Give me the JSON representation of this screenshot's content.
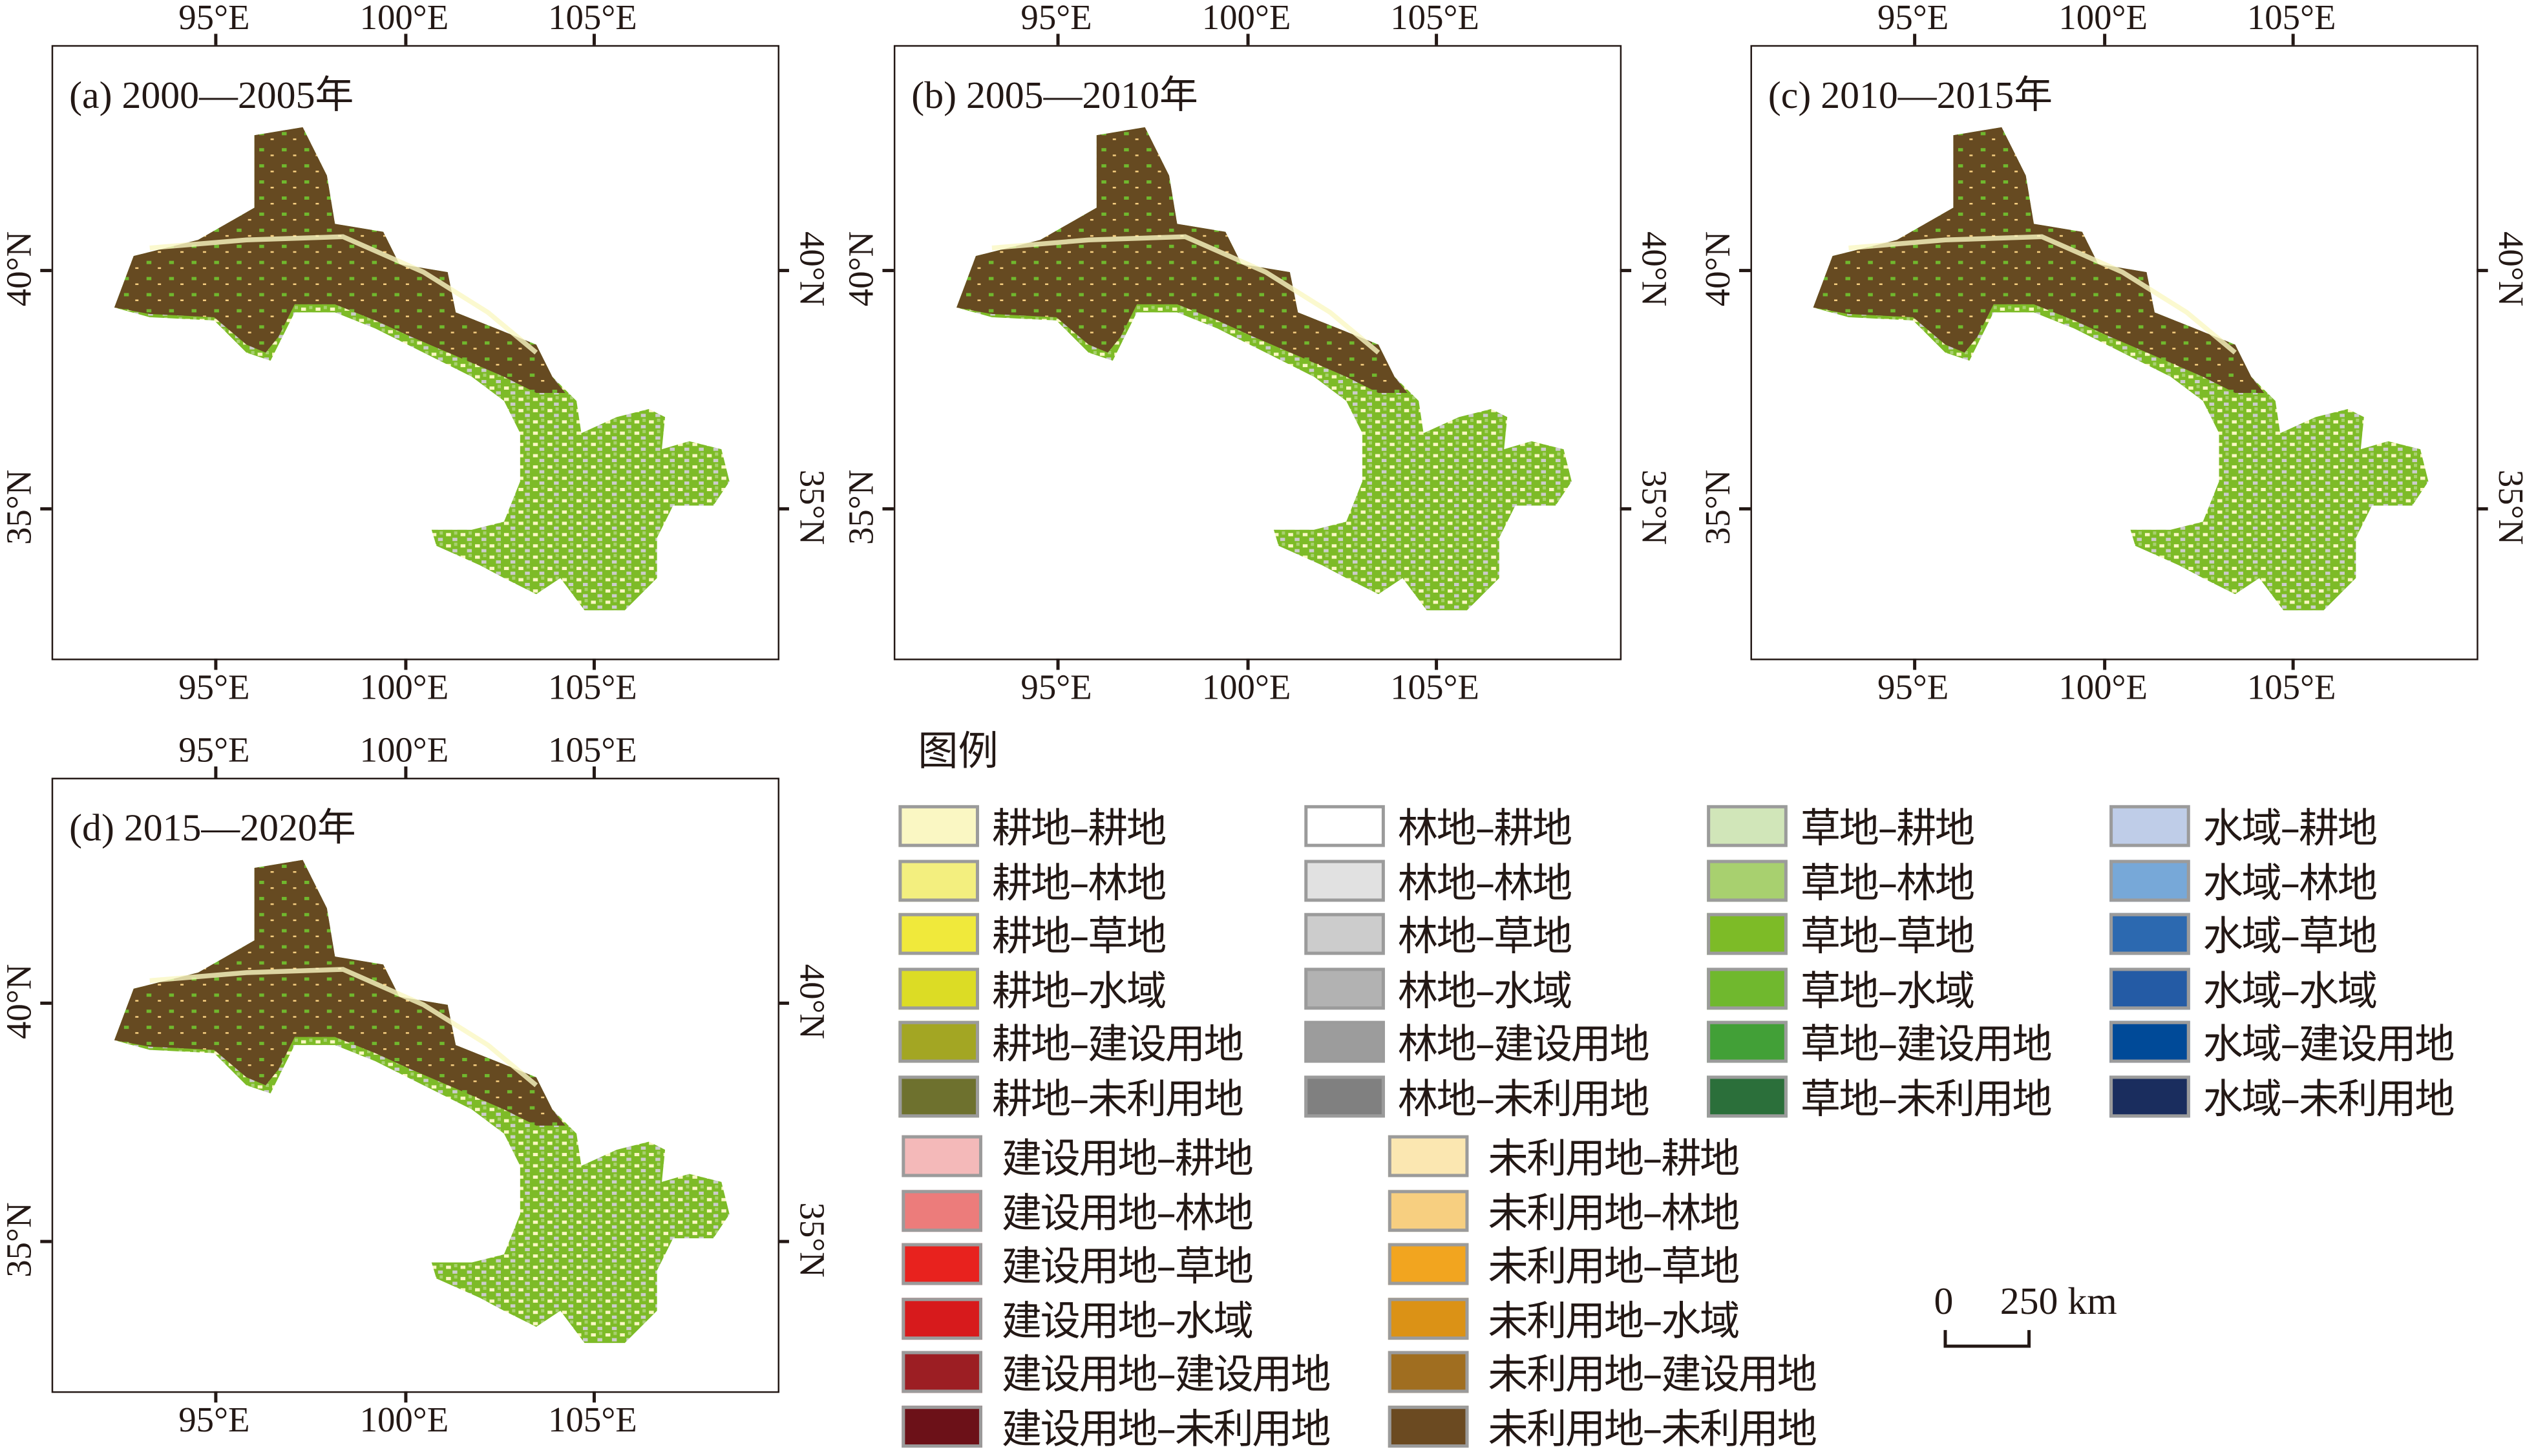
{
  "panels": [
    {
      "id": "a",
      "title": "(a) 2000—2005年",
      "lon_ticks": [
        "95°E",
        "100°E",
        "105°E"
      ],
      "lat_ticks": [
        "40°N",
        "35°N"
      ]
    },
    {
      "id": "b",
      "title": "(b) 2005—2010年",
      "lon_ticks": [
        "95°E",
        "100°E",
        "105°E"
      ],
      "lat_ticks": [
        "40°N",
        "35°N"
      ]
    },
    {
      "id": "c",
      "title": "(c) 2010—2015年",
      "lon_ticks": [
        "95°E",
        "100°E",
        "105°E"
      ],
      "lat_ticks": [
        "40°N",
        "35°N"
      ]
    },
    {
      "id": "d",
      "title": "(d) 2015—2020年",
      "lon_ticks": [
        "95°E",
        "100°E",
        "105°E"
      ],
      "lat_ticks": [
        "40°N",
        "35°N"
      ]
    }
  ],
  "legend": {
    "title": "图例",
    "columns": [
      [
        {
          "label": "耕地–耕地",
          "color": "#faf7c3"
        },
        {
          "label": "耕地–林地",
          "color": "#f3ef7f"
        },
        {
          "label": "耕地–草地",
          "color": "#f0e93b"
        },
        {
          "label": "耕地–水域",
          "color": "#dcdc25"
        },
        {
          "label": "耕地–建设用地",
          "color": "#a3a623"
        },
        {
          "label": "耕地–未利用地",
          "color": "#6e712e"
        }
      ],
      [
        {
          "label": "林地–耕地",
          "color": "#ffffff"
        },
        {
          "label": "林地–林地",
          "color": "#e1e1e1"
        },
        {
          "label": "林地–草地",
          "color": "#cccccc"
        },
        {
          "label": "林地–水域",
          "color": "#b2b2b2"
        },
        {
          "label": "林地–建设用地",
          "color": "#9c9c9c"
        },
        {
          "label": "林地–未利用地",
          "color": "#808080"
        }
      ],
      [
        {
          "label": "草地–耕地",
          "color": "#d1e6b9"
        },
        {
          "label": "草地–林地",
          "color": "#a8d06f"
        },
        {
          "label": "草地–草地",
          "color": "#7dbb27"
        },
        {
          "label": "草地–水域",
          "color": "#70b82e"
        },
        {
          "label": "草地–建设用地",
          "color": "#42a037"
        },
        {
          "label": "草地–未利用地",
          "color": "#2b6f3a"
        }
      ],
      [
        {
          "label": "水域–耕地",
          "color": "#bfcde8"
        },
        {
          "label": "水域–林地",
          "color": "#77a8d8"
        },
        {
          "label": "水域–草地",
          "color": "#2c69b0"
        },
        {
          "label": "水域–水域",
          "color": "#245ba5"
        },
        {
          "label": "水域–建设用地",
          "color": "#004a98"
        },
        {
          "label": "水域–未利用地",
          "color": "#1a2d5e"
        }
      ],
      [
        {
          "label": "建设用地–耕地",
          "color": "#f4b9b9"
        },
        {
          "label": "建设用地–林地",
          "color": "#ec7c7b"
        },
        {
          "label": "建设用地–草地",
          "color": "#e8221e"
        },
        {
          "label": "建设用地–水域",
          "color": "#d71a1c"
        },
        {
          "label": "建设用地–建设用地",
          "color": "#9c1e23"
        },
        {
          "label": "建设用地–未利用地",
          "color": "#6c1118"
        }
      ],
      [
        {
          "label": "未利用地–耕地",
          "color": "#fbe7b1"
        },
        {
          "label": "未利用地–林地",
          "color": "#f7cf80"
        },
        {
          "label": "未利用地–草地",
          "color": "#f2a51f"
        },
        {
          "label": "未利用地–水域",
          "color": "#db9216"
        },
        {
          "label": "未利用地–建设用地",
          "color": "#a06e20"
        },
        {
          "label": "未利用地–未利用地",
          "color": "#6b4a21"
        }
      ]
    ]
  },
  "scale_bar": {
    "start": "0",
    "end": "250 km"
  },
  "colors": {
    "desert": "#664a21",
    "grass": "#7dbb27",
    "crop": "#faf7c3",
    "forest": "#cccccc"
  }
}
